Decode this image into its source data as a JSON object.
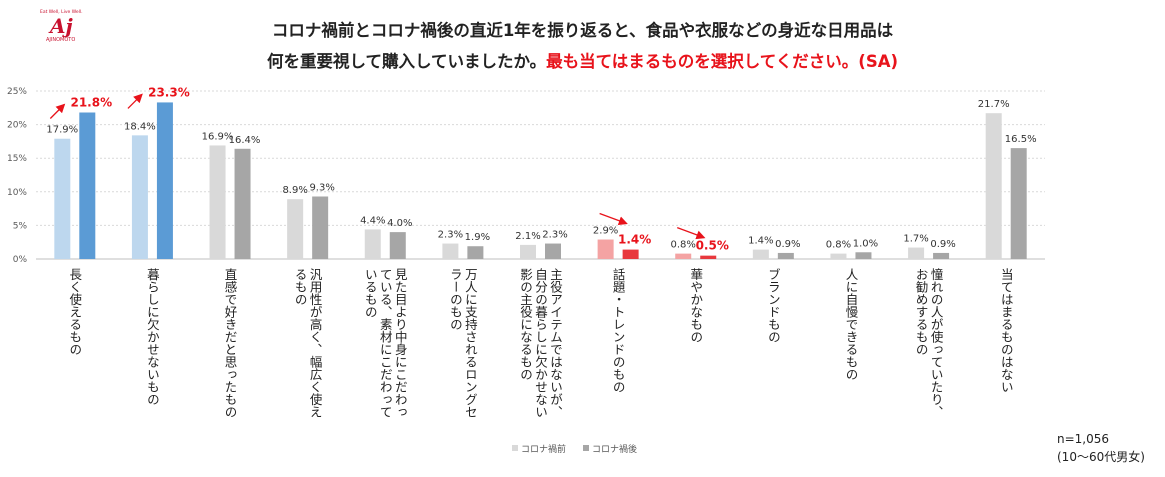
{
  "logo": {
    "tagline": "Eat Well, Live Well.",
    "mark": "Aj",
    "brand": "AJINOMOTO"
  },
  "title": {
    "line1": "コロナ禍前とコロナ禍後の直近1年を振り返ると、食品や衣服などの身近な日用品は",
    "line2_plain": "何を重要視して購入していましたか。",
    "line2_highlight": "最も当てはまるものを選択してください。(SA)"
  },
  "note": {
    "n": "n=1,056",
    "base": "(10〜60代男女)"
  },
  "colors": {
    "pre_default": "#d9d9d9",
    "post_default": "#a6a6a6",
    "pre_blue": "#bdd7ee",
    "post_blue": "#5b9bd5",
    "pre_red": "#f4a3a3",
    "post_red": "#e8383d",
    "highlight_text": "#e8131b",
    "axis": "#bfbfbf",
    "grid": "#d9d9d9"
  },
  "chart_data": {
    "type": "bar",
    "ylim": [
      0,
      25
    ],
    "yticks": [
      "0%",
      "5%",
      "10%",
      "15%",
      "20%",
      "25%"
    ],
    "ytick_values": [
      0,
      5,
      10,
      15,
      20,
      25
    ],
    "legend": [
      "コロナ禍前",
      "コロナ禍後"
    ],
    "legend_position": "bottom",
    "categories": [
      "長く使えるもの",
      "暮らしに欠かせないもの",
      "直感で好きだと思ったもの",
      "汎用性が高く、幅広く使えるもの",
      "見た目より中身にこだわっている、素材にこだわっているもの",
      "万人に支持されるロングセラーのもの",
      "主役アイテムではないが、自分の暮らしに欠かせない影の主役になるもの",
      "話題・トレンドのもの",
      "華やかなもの",
      "ブランドもの",
      "人に自慢できるもの",
      "憧れの人が使っていたり、お勧めするもの",
      "当てはまるものはない"
    ],
    "category_lines": [
      [
        "長く使えるもの"
      ],
      [
        "暮らしに欠かせないもの"
      ],
      [
        "直感で好きだと思ったもの"
      ],
      [
        "汎用性が高く、幅広く使え",
        "るもの"
      ],
      [
        "見た目より中身にこだわっ",
        "ている、素材にこだわって",
        "いるもの"
      ],
      [
        "万人に支持されるロングセ",
        "ラーのもの"
      ],
      [
        "主役アイテムではないが、",
        "自分の暮らしに欠かせない",
        "影の主役になるもの"
      ],
      [
        "話題・トレンドのもの"
      ],
      [
        "華やかなもの"
      ],
      [
        "ブランドもの"
      ],
      [
        "人に自慢できるもの"
      ],
      [
        "憧れの人が使っていたり、",
        "お勧めするもの"
      ],
      [
        "当てはまるものはない"
      ]
    ],
    "series": [
      {
        "name": "コロナ禍前",
        "values": [
          17.9,
          18.4,
          16.9,
          8.9,
          4.4,
          2.3,
          2.1,
          2.9,
          0.8,
          1.4,
          0.8,
          1.7,
          21.7
        ],
        "labels": [
          "17.9%",
          "18.4%",
          "16.9%",
          "8.9%",
          "4.4%",
          "2.3%",
          "2.1%",
          "2.9%",
          "0.8%",
          "1.4%",
          "0.8%",
          "1.7%",
          "21.7%"
        ]
      },
      {
        "name": "コロナ禍後",
        "values": [
          21.8,
          23.3,
          16.4,
          9.3,
          4.0,
          1.9,
          2.3,
          1.4,
          0.5,
          0.9,
          1.0,
          0.9,
          16.5
        ],
        "labels": [
          "21.8%",
          "23.3%",
          "16.4%",
          "9.3%",
          "4.0%",
          "1.9%",
          "2.3%",
          "1.4%",
          "0.5%",
          "0.9%",
          "1.0%",
          "0.9%",
          "16.5%"
        ]
      }
    ],
    "highlight": [
      "blue",
      "blue",
      "none",
      "none",
      "none",
      "none",
      "none",
      "red",
      "red",
      "none",
      "none",
      "none",
      "none"
    ],
    "trend_arrows": [
      "up",
      "up",
      "none",
      "none",
      "none",
      "none",
      "none",
      "down",
      "down",
      "none",
      "none",
      "none",
      "none"
    ]
  }
}
